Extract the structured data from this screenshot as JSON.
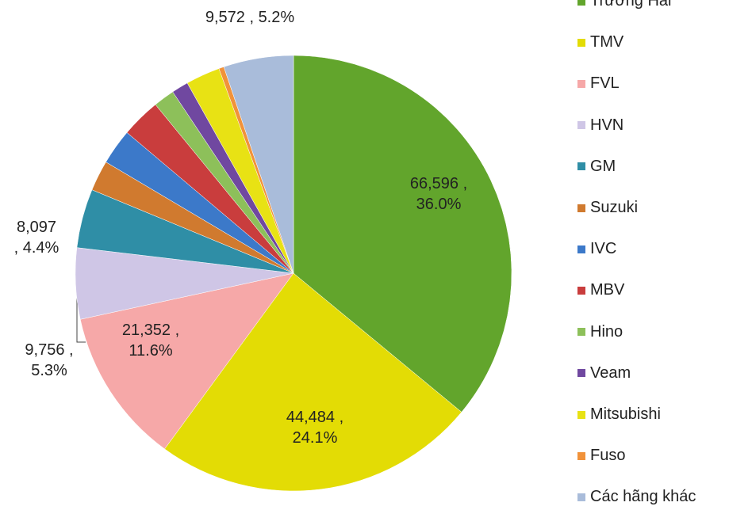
{
  "chart_data": {
    "type": "pie",
    "categories": [
      "Trường Hải",
      "TMV",
      "FVL",
      "HVN",
      "GM",
      "Suzuki",
      "IVC",
      "MBV",
      "Hino",
      "Veam",
      "Mitsubishi",
      "Fuso",
      "Các hãng khác"
    ],
    "values": [
      66596,
      44484,
      21352,
      9756,
      8097,
      4200,
      4900,
      5400,
      2900,
      2300,
      4700,
      700,
      9572
    ],
    "value_labels": [
      "66,596 , 36.0%",
      "44,484 , 24.1%",
      "21,352 , 11.6%",
      "9,756 , 5.3%",
      "8,097 , 4.4%",
      null,
      null,
      null,
      null,
      null,
      null,
      null,
      "9,572 , 5.2%"
    ],
    "colors": [
      "#62a52c",
      "#e3dc05",
      "#f6a8a8",
      "#cfc6e6",
      "#2f8ea6",
      "#d07a2f",
      "#3c79c9",
      "#c93d3d",
      "#8dc05a",
      "#7048a0",
      "#e8e214",
      "#f1923a",
      "#a9bcda"
    ],
    "legend": "right"
  }
}
